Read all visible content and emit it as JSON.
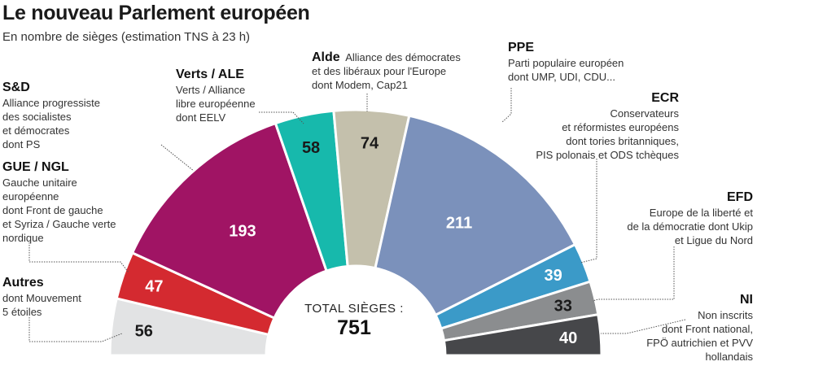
{
  "chart_data": {
    "type": "parliament-semicircle",
    "title": "Le nouveau Parlement européen",
    "subtitle": "En nombre de sièges (estimation TNS à 23 h)",
    "total_label": "TOTAL SIÈGES :",
    "total": 751,
    "parties": [
      {
        "key": "autres",
        "name": "Autres",
        "desc": [
          "dont Mouvement",
          "5 étoiles"
        ],
        "seats": 56,
        "color": "#e2e3e4",
        "value_color": "#1a1a1a"
      },
      {
        "key": "gue",
        "name": "GUE / NGL",
        "desc": [
          "Gauche unitaire",
          "européenne",
          "dont Front de gauche",
          "et Syriza / Gauche verte",
          "nordique"
        ],
        "seats": 47,
        "color": "#d42a30",
        "value_color": "#ffffff"
      },
      {
        "key": "sd",
        "name": "S&D",
        "desc": [
          "Alliance progressiste",
          "des socialistes",
          "et démocrates",
          "dont PS"
        ],
        "seats": 193,
        "color": "#a01464",
        "value_color": "#ffffff"
      },
      {
        "key": "verts",
        "name": "Verts / ALE",
        "desc": [
          "Verts / Alliance",
          "libre européenne",
          "dont EELV"
        ],
        "seats": 58,
        "color": "#17b9ac",
        "value_color": "#1a1a1a"
      },
      {
        "key": "alde",
        "name": "Alde",
        "desc": [
          "Alliance des démocrates",
          "et des libéraux pour l'Europe",
          "dont Modem, Cap21"
        ],
        "seats": 74,
        "color": "#c4c0ac",
        "value_color": "#1a1a1a"
      },
      {
        "key": "ppe",
        "name": "PPE",
        "desc": [
          "Parti populaire européen",
          "dont UMP, UDI, CDU..."
        ],
        "seats": 211,
        "color": "#7b91bb",
        "value_color": "#ffffff"
      },
      {
        "key": "ecr",
        "name": "ECR",
        "desc": [
          "Conservateurs",
          "et réformistes européens",
          "dont tories britanniques,",
          "PIS polonais et ODS tchèques"
        ],
        "seats": 39,
        "color": "#3b9ac8",
        "value_color": "#ffffff"
      },
      {
        "key": "efd",
        "name": "EFD",
        "desc": [
          "Europe de la liberté et",
          "de la démocratie dont Ukip",
          "et Ligue du Nord"
        ],
        "seats": 33,
        "color": "#8b8d8f",
        "value_color": "#1a1a1a"
      },
      {
        "key": "ni",
        "name": "NI",
        "desc": [
          "Non inscrits",
          "dont Front national,",
          "FPÖ autrichien et PVV",
          "hollandais"
        ],
        "seats": 40,
        "color": "#46474a",
        "value_color": "#ffffff"
      }
    ]
  }
}
